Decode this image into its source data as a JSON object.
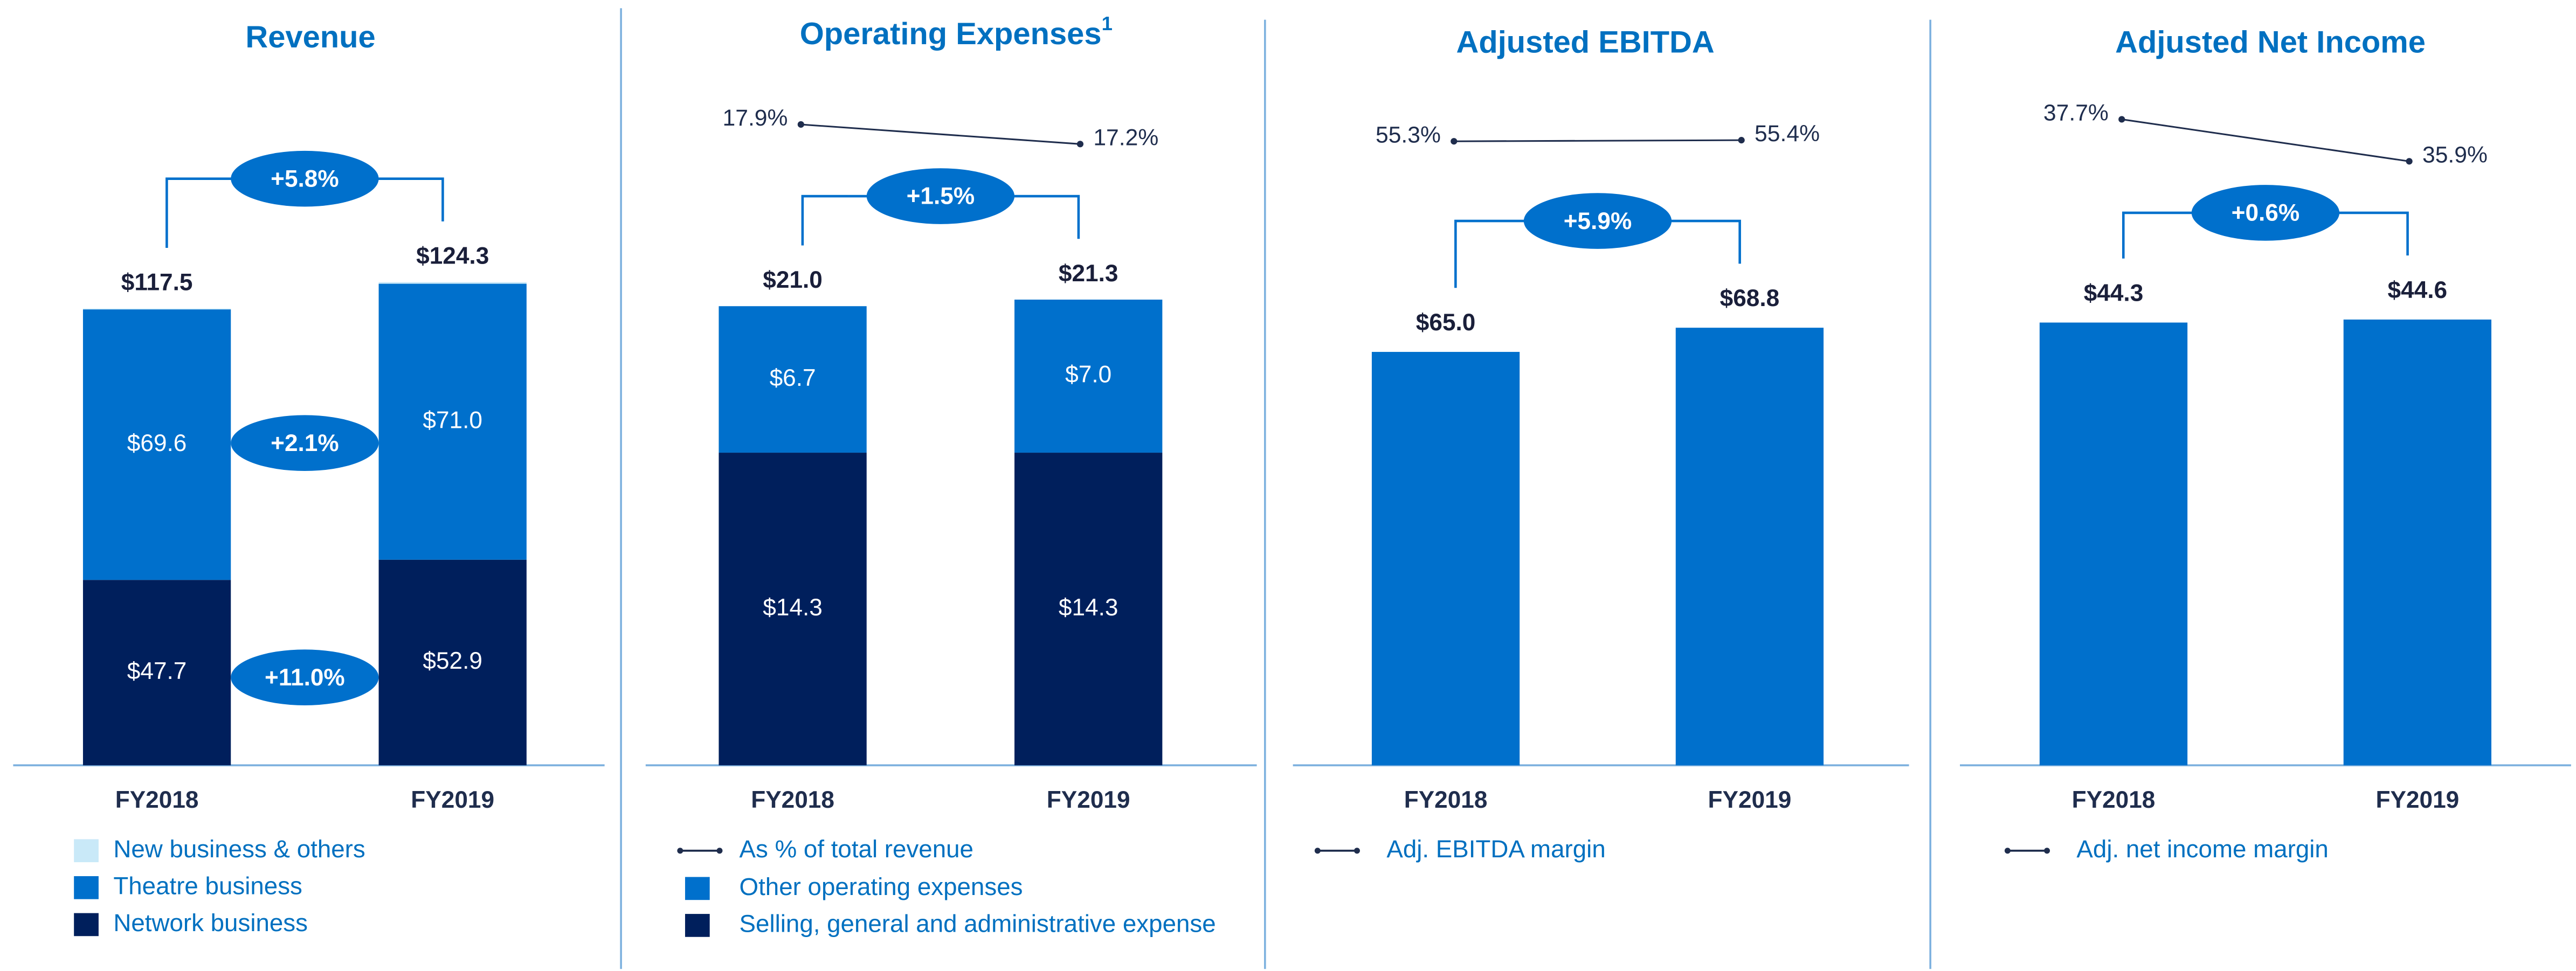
{
  "chart_data": [
    {
      "type": "bar",
      "stacked": true,
      "title": "Revenue",
      "categories": [
        "FY2018",
        "FY2019"
      ],
      "ylim": [
        0,
        180
      ],
      "series": [
        {
          "name": "New business & others",
          "color": "#c9e9f8",
          "values": [
            0.2,
            0.4
          ]
        },
        {
          "name": "Theatre business",
          "color": "#0070cc",
          "values": [
            69.6,
            71.0
          ],
          "value_labels": [
            "$69.6",
            "$71.0"
          ],
          "growth_label": "+2.1%"
        },
        {
          "name": "Network business",
          "color": "#001f5c",
          "values": [
            47.7,
            52.9
          ],
          "value_labels": [
            "$47.7",
            "$52.9"
          ],
          "growth_label": "+11.0%"
        }
      ],
      "totals": [
        117.5,
        124.3
      ],
      "total_labels": [
        "$117.5",
        "$124.3"
      ],
      "growth_label": "+5.8%"
    },
    {
      "type": "bar",
      "stacked": true,
      "title": "Operating Expenses",
      "title_note": "1",
      "categories": [
        "FY2018",
        "FY2019"
      ],
      "ylim": [
        0,
        32
      ],
      "y2lim": [
        -5,
        20
      ],
      "line_series": {
        "name": "As % of total revenue",
        "color": "#1f2d4d",
        "values": [
          17.9,
          17.2
        ],
        "value_labels": [
          "17.9%",
          "17.2%"
        ]
      },
      "series": [
        {
          "name": "Other operating expenses",
          "color": "#0070cc",
          "values": [
            6.7,
            7.0
          ],
          "value_labels": [
            "$6.7",
            "$7.0"
          ]
        },
        {
          "name": "Selling, general and administrative expense",
          "color": "#001f5c",
          "values": [
            14.3,
            14.3
          ],
          "value_labels": [
            "$14.3",
            "$14.3"
          ]
        }
      ],
      "totals": [
        21.0,
        21.3
      ],
      "total_labels": [
        "$21.0",
        "$21.3"
      ],
      "growth_label": "+1.5%"
    },
    {
      "type": "bar",
      "title": "Adjusted EBITDA",
      "categories": [
        "FY2018",
        "FY2019"
      ],
      "ylim": [
        0,
        110
      ],
      "y2lim": [
        0,
        62
      ],
      "color": "#0070cc",
      "values": [
        65.0,
        68.8
      ],
      "value_labels": [
        "$65.0",
        "$68.8"
      ],
      "line_series": {
        "name": "Adj. EBITDA margin",
        "color": "#1f2d4d",
        "values": [
          55.3,
          55.4
        ],
        "value_labels": [
          "55.3%",
          "55.4%"
        ]
      },
      "growth_label": "+5.9%"
    },
    {
      "type": "bar",
      "title": "Adjusted Net Income",
      "categories": [
        "FY2018",
        "FY2019"
      ],
      "ylim": [
        0,
        70
      ],
      "y2lim": [
        10,
        40
      ],
      "color": "#0070cc",
      "values": [
        44.3,
        44.6
      ],
      "value_labels": [
        "$44.3",
        "$44.6"
      ],
      "line_series": {
        "name": "Adj. net income margin",
        "color": "#1f2d4d",
        "values": [
          37.7,
          35.9
        ],
        "value_labels": [
          "37.7%",
          "35.9%"
        ]
      },
      "growth_label": "+0.6%"
    }
  ]
}
